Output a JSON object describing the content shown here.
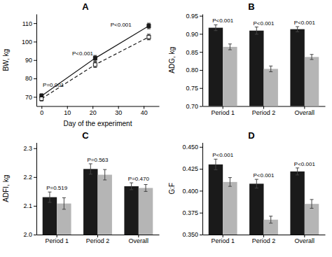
{
  "chart_data": [
    {
      "type": "line",
      "title": "A",
      "x": [
        0,
        21,
        42
      ],
      "series": [
        {
          "color": "#1a1a1a",
          "line_style": "solid",
          "marker": "square",
          "values": [
            70.5,
            91.0,
            108.5
          ],
          "errors": [
            1.2,
            1.5,
            1.5
          ]
        },
        {
          "color": "#1a1a1a",
          "line_style": "dashed",
          "marker": "square-open",
          "values": [
            69.0,
            87.5,
            102.5
          ],
          "errors": [
            1.2,
            1.5,
            1.5
          ]
        }
      ],
      "annotations": [
        {
          "x": 0.5,
          "y": 75.5,
          "text": "P=0.001"
        },
        {
          "x": 12,
          "y": 92.5,
          "text": "P<0.001"
        },
        {
          "x": 27,
          "y": 108,
          "text": "P<0.001"
        }
      ],
      "xlabel": "Day of the experiment",
      "ylabel": "BW, kg",
      "xlim": [
        -2,
        46
      ],
      "ylim": [
        65,
        115
      ],
      "xticks": [
        0,
        10,
        20,
        30,
        40
      ],
      "yticks": [
        70,
        80,
        90,
        100,
        110
      ],
      "grid": false
    },
    {
      "type": "bar",
      "title": "B",
      "categories": [
        "Period 1",
        "Period 2",
        "Overall"
      ],
      "series": [
        {
          "color": "#1a1a1a",
          "values": [
            0.917,
            0.909,
            0.913
          ],
          "errors": [
            0.008,
            0.01,
            0.007
          ]
        },
        {
          "color": "#b5b5b5",
          "values": [
            0.864,
            0.803,
            0.836
          ],
          "errors": [
            0.008,
            0.008,
            0.007
          ]
        }
      ],
      "annotations": [
        "P<0.001",
        "P<0.001",
        "P<0.001"
      ],
      "ylabel": "ADG, kg",
      "ylim": [
        0.7,
        0.955
      ],
      "yticks": [
        {
          "value": 0.7,
          "label": "0.70"
        },
        0.75,
        {
          "value": 0.8,
          "label": "0.80"
        },
        0.85,
        {
          "value": 0.9,
          "label": "0.90"
        },
        0.95
      ],
      "grid": false
    },
    {
      "type": "bar",
      "title": "C",
      "categories": [
        "Period 1",
        "Period 2",
        "Overall"
      ],
      "series": [
        {
          "color": "#1a1a1a",
          "values": [
            2.13,
            2.228,
            2.168
          ],
          "errors": [
            0.018,
            0.018,
            0.012
          ]
        },
        {
          "color": "#b5b5b5",
          "values": [
            2.108,
            2.208,
            2.162
          ],
          "errors": [
            0.02,
            0.018,
            0.012
          ]
        }
      ],
      "annotations": [
        "P=0.519",
        "P=0.563",
        "P=0.470"
      ],
      "ylabel": "ADFI, kg",
      "ylim": [
        2.0,
        2.32
      ],
      "yticks": [
        {
          "value": 2.0,
          "label": "2.0"
        },
        2.1,
        2.2,
        2.3
      ],
      "grid": false
    },
    {
      "type": "bar",
      "title": "D",
      "categories": [
        "Period 1",
        "Period 2",
        "Overall"
      ],
      "series": [
        {
          "color": "#1a1a1a",
          "values": [
            0.43,
            0.408,
            0.422
          ],
          "errors": [
            0.006,
            0.005,
            0.004
          ]
        },
        {
          "color": "#b5b5b5",
          "values": [
            0.41,
            0.367,
            0.385
          ],
          "errors": [
            0.005,
            0.004,
            0.005
          ]
        }
      ],
      "annotations": [
        "P<0.001",
        "P<0.001",
        "P<0.001"
      ],
      "ylabel": "G:F",
      "ylim": [
        0.35,
        0.455
      ],
      "yticks": [
        {
          "value": 0.35,
          "label": "0.350"
        },
        0.375,
        {
          "value": 0.4,
          "label": "0.400"
        },
        0.425,
        {
          "value": 0.45,
          "label": "0.450"
        }
      ],
      "grid": false
    }
  ]
}
